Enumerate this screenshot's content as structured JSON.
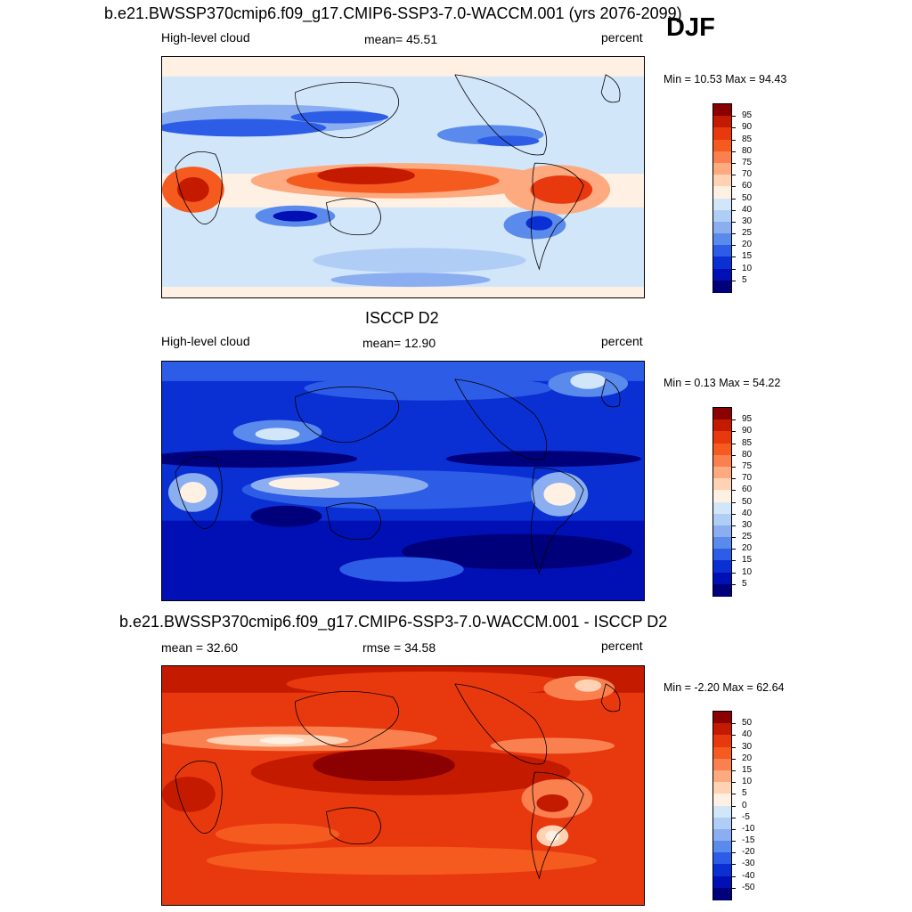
{
  "figure": {
    "season_label": "DJF"
  },
  "panels": [
    {
      "title": "b.e21.BWSSP370cmip6.f09_g17.CMIP6-SSP3-7.0-WACCM.001 (yrs 2076-2099)",
      "variable": "High-level cloud",
      "stat": "mean=  45.51",
      "units": "percent",
      "minmax": "Min =  10.53 Max =  94.43",
      "colorbar_labels": [
        "95",
        "90",
        "85",
        "80",
        "75",
        "70",
        "60",
        "50",
        "40",
        "30",
        "25",
        "20",
        "15",
        "10",
        "5"
      ],
      "colorbar_colors": [
        "#8b0000",
        "#c41a00",
        "#e8380e",
        "#f55a1f",
        "#fa8050",
        "#fdaa80",
        "#ffd2b4",
        "#fff0e4",
        "#d2e6fa",
        "#b0cdf5",
        "#8aaef0",
        "#5a8aeb",
        "#2d5ce6",
        "#0a2fd2",
        "#0010b4",
        "#00007a"
      ]
    },
    {
      "title": "ISCCP D2",
      "variable": "High-level cloud",
      "stat": "mean=  12.90",
      "units": "percent",
      "minmax": "Min =   0.13 Max =  54.22",
      "colorbar_labels": [
        "95",
        "90",
        "85",
        "80",
        "75",
        "70",
        "60",
        "50",
        "40",
        "30",
        "25",
        "20",
        "15",
        "10",
        "5"
      ],
      "colorbar_colors": [
        "#8b0000",
        "#c41a00",
        "#e8380e",
        "#f55a1f",
        "#fa8050",
        "#fdaa80",
        "#ffd2b4",
        "#fff0e4",
        "#d2e6fa",
        "#b0cdf5",
        "#8aaef0",
        "#5a8aeb",
        "#2d5ce6",
        "#0a2fd2",
        "#0010b4",
        "#00007a"
      ]
    },
    {
      "title": "b.e21.BWSSP370cmip6.f09_g17.CMIP6-SSP3-7.0-WACCM.001 - ISCCP D2",
      "variable": "mean =  32.60",
      "stat": "rmse =  34.58",
      "units": "percent",
      "minmax": "Min =  -2.20 Max =  62.64",
      "colorbar_labels": [
        "50",
        "40",
        "30",
        "20",
        "15",
        "10",
        "5",
        "0",
        "-5",
        "-10",
        "-15",
        "-20",
        "-30",
        "-40",
        "-50"
      ],
      "colorbar_colors": [
        "#8b0000",
        "#c41a00",
        "#e8380e",
        "#f55a1f",
        "#fa8050",
        "#fdaa80",
        "#ffd2b4",
        "#fff0e4",
        "#d2e6fa",
        "#b0cdf5",
        "#8aaef0",
        "#5a8aeb",
        "#2d5ce6",
        "#0a2fd2",
        "#0010b4",
        "#00007a"
      ]
    }
  ]
}
